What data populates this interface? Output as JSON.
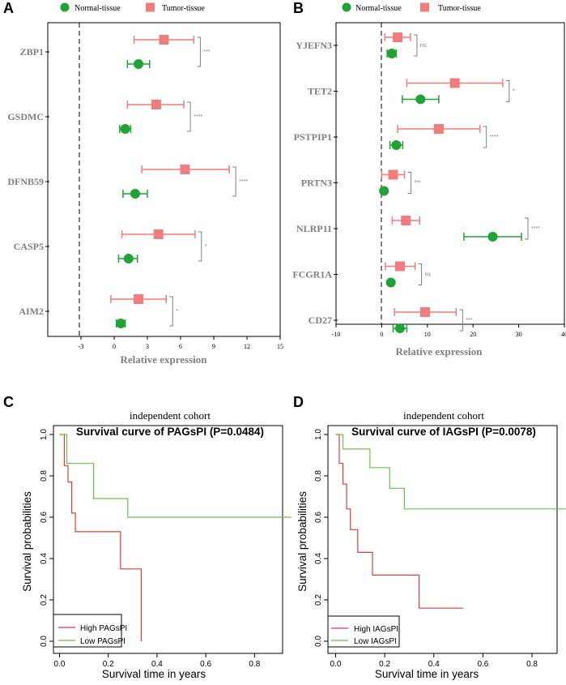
{
  "colors": {
    "normal": "#1fa334",
    "tumor": "#f07c7c",
    "axis": "#000000",
    "gray": "#808080",
    "high": "#e03b3b",
    "low": "#6cc04a"
  },
  "chart_data": [
    {
      "type": "scatter",
      "panel": "A",
      "subtype": "forest-plot",
      "legend": [
        "Normal-tissue",
        "Tumor-tissue"
      ],
      "xlabel": "Relative expression",
      "xlim": [
        -6,
        15
      ],
      "xticks": [
        -3,
        0,
        3,
        6,
        9,
        12,
        15
      ],
      "categories": [
        "ZBP1",
        "GSDMC",
        "DFNB59",
        "CASP5",
        "AIM2"
      ],
      "series": [
        {
          "name": "Tumor-tissue",
          "mean": [
            4.5,
            3.8,
            6.4,
            4.0,
            2.2
          ],
          "lower": [
            1.8,
            1.2,
            2.5,
            0.7,
            -0.3
          ],
          "upper": [
            7.2,
            6.3,
            10.4,
            7.3,
            4.7
          ]
        },
        {
          "name": "Normal-tissue",
          "mean": [
            2.2,
            1.0,
            1.9,
            1.3,
            0.6
          ],
          "lower": [
            1.2,
            0.5,
            0.8,
            0.4,
            0.2
          ],
          "upper": [
            3.2,
            1.5,
            3.0,
            2.1,
            1.0
          ]
        }
      ],
      "significance": [
        "***",
        "****",
        "****",
        "*",
        "*"
      ]
    },
    {
      "type": "scatter",
      "panel": "B",
      "subtype": "forest-plot",
      "legend": [
        "Normal-tissue",
        "Tumor-tissue"
      ],
      "xlabel": "Relative expression",
      "xlim": [
        -10,
        40
      ],
      "xticks": [
        -10,
        0,
        10,
        20,
        30,
        40
      ],
      "categories": [
        "YJEFN3",
        "TET2",
        "PSTPIP1",
        "PRTN3",
        "NLRP11",
        "FCGR1A",
        "CD27"
      ],
      "series": [
        {
          "name": "Tumor-tissue",
          "mean": [
            3.5,
            16.0,
            12.5,
            2.5,
            5.3,
            4.0,
            9.5
          ],
          "lower": [
            0.7,
            5.5,
            3.5,
            0.0,
            2.3,
            0.8,
            2.8
          ],
          "upper": [
            6.3,
            26.5,
            21.5,
            5.0,
            8.3,
            7.3,
            16.3
          ]
        },
        {
          "name": "Normal-tissue",
          "mean": [
            2.2,
            8.5,
            3.2,
            0.5,
            24.3,
            2.0,
            4.0
          ],
          "lower": [
            1.2,
            4.5,
            1.8,
            0.5,
            18.0,
            2.0,
            2.5
          ],
          "upper": [
            3.2,
            12.5,
            4.6,
            0.5,
            30.6,
            2.0,
            5.5
          ]
        }
      ],
      "significance": [
        "ns",
        "*",
        "****",
        "***",
        "****",
        "ns",
        "***"
      ]
    },
    {
      "type": "line",
      "panel": "C",
      "subtype": "kaplan-meier",
      "subtitle": "independent cohort",
      "title": "Survival curve of PAGsPI (P=0.0484)",
      "xlabel": "Survival time in years",
      "ylabel": "Survival probabilities",
      "xlim": [
        0,
        0.95
      ],
      "ylim": [
        0,
        1.0
      ],
      "xticks": [
        0.0,
        0.2,
        0.4,
        0.6,
        0.8
      ],
      "yticks": [
        0.0,
        0.2,
        0.4,
        0.6,
        0.8,
        1.0
      ],
      "series": [
        {
          "name": "High PAGsPI",
          "x": [
            0,
            0.02,
            0.02,
            0.035,
            0.035,
            0.05,
            0.05,
            0.065,
            0.065,
            0.1,
            0.1,
            0.25,
            0.25,
            0.335,
            0.335
          ],
          "y": [
            1.0,
            1.0,
            0.85,
            0.85,
            0.77,
            0.77,
            0.62,
            0.62,
            0.53,
            0.53,
            0.53,
            0.53,
            0.35,
            0.35,
            0.0
          ]
        },
        {
          "name": "Low PAGsPI",
          "x": [
            0,
            0.03,
            0.03,
            0.14,
            0.14,
            0.28,
            0.28,
            0.95
          ],
          "y": [
            1.0,
            1.0,
            0.86,
            0.86,
            0.69,
            0.69,
            0.6,
            0.6
          ]
        }
      ],
      "legend_labels": [
        "High PAGsPI",
        "Low PAGsPI"
      ]
    },
    {
      "type": "line",
      "panel": "D",
      "subtype": "kaplan-meier",
      "subtitle": "independent cohort",
      "title": "Survival curve of IAGsPI (P=0.0078)",
      "xlabel": "Survival time in years",
      "ylabel": "Survival probabilities",
      "xlim": [
        0,
        0.95
      ],
      "ylim": [
        0,
        1.0
      ],
      "xticks": [
        0.0,
        0.2,
        0.4,
        0.6,
        0.8
      ],
      "yticks": [
        0.0,
        0.2,
        0.4,
        0.6,
        0.8,
        1.0
      ],
      "series": [
        {
          "name": "High IAGsPI",
          "x": [
            0,
            0.015,
            0.015,
            0.03,
            0.03,
            0.045,
            0.045,
            0.06,
            0.06,
            0.09,
            0.09,
            0.15,
            0.15,
            0.34,
            0.34,
            0.52
          ],
          "y": [
            1.0,
            1.0,
            0.86,
            0.86,
            0.76,
            0.76,
            0.64,
            0.64,
            0.54,
            0.54,
            0.43,
            0.43,
            0.32,
            0.32,
            0.16,
            0.16
          ]
        },
        {
          "name": "Low IAGsPI",
          "x": [
            0,
            0.03,
            0.03,
            0.14,
            0.14,
            0.22,
            0.22,
            0.28,
            0.28,
            0.95
          ],
          "y": [
            1.0,
            1.0,
            0.93,
            0.93,
            0.84,
            0.84,
            0.74,
            0.74,
            0.64,
            0.64
          ]
        }
      ],
      "legend_labels": [
        "High IAGsPI",
        "Low IAGsPI"
      ]
    }
  ]
}
